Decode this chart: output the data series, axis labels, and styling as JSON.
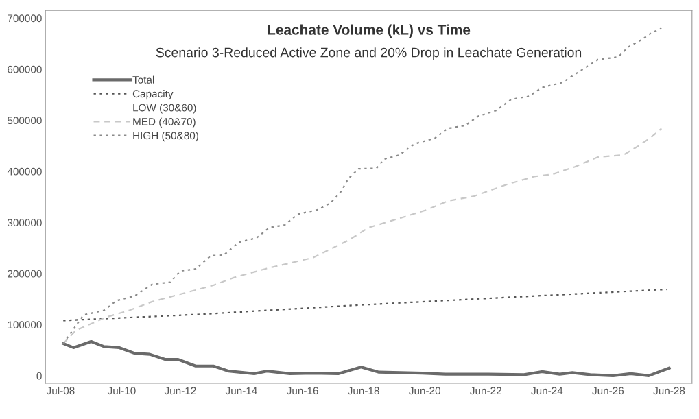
{
  "chart_data": {
    "type": "line",
    "title": "Leachate Volume (kL) vs Time",
    "subtitle": "Scenario 3-Reduced Active Zone and 20% Drop in Leachate Generation",
    "series": [
      {
        "name": "Total",
        "color": "#6a6a6a",
        "line_style": "solid",
        "x": [
          "2008-08",
          "2008-12",
          "2009-07",
          "2009-12",
          "2010-06",
          "2010-12",
          "2011-06",
          "2011-12",
          "2012-05",
          "2012-12",
          "2013-07",
          "2014-01",
          "2014-11",
          "2015-04",
          "2016-01",
          "2016-10",
          "2017-08",
          "2018-05",
          "2018-12",
          "2020-05",
          "2021-02",
          "2022-07",
          "2023-09",
          "2024-04",
          "2024-11",
          "2025-04",
          "2025-11",
          "2026-08",
          "2027-03",
          "2027-10",
          "2028-06"
        ],
        "values": [
          63000,
          55000,
          67000,
          57000,
          55000,
          44000,
          42000,
          32000,
          32000,
          19000,
          19000,
          9000,
          4000,
          9000,
          4000,
          5000,
          4000,
          17000,
          7000,
          5000,
          3000,
          3000,
          2000,
          8000,
          3000,
          6000,
          2000,
          0,
          4000,
          0,
          15000
        ]
      },
      {
        "name": "Capacity",
        "color": "#555555",
        "line_style": "dotted",
        "x": [
          "2008-08",
          "2013-01",
          "2018-03",
          "2023-01",
          "2028-05"
        ],
        "values": [
          108000,
          120000,
          138000,
          153000,
          169000
        ]
      },
      {
        "name": "LOW (30&60)",
        "line_style": "solid"
      },
      {
        "name": "MED (40&70)",
        "color": "#c8c8c8",
        "line_style": "dashed",
        "x": [
          "2008-08",
          "2009-01",
          "2010-01",
          "2010-10",
          "2011-07",
          "2012-07",
          "2013-07",
          "2014-03",
          "2015-04",
          "2016-10",
          "2017-12",
          "2018-08",
          "2019-08",
          "2020-07",
          "2021-03",
          "2022-01",
          "2023-02",
          "2024-01",
          "2024-08",
          "2025-05",
          "2026-02",
          "2026-12",
          "2027-06",
          "2027-11",
          "2028-03"
        ],
        "values": [
          63000,
          89000,
          115000,
          128000,
          145000,
          161000,
          177000,
          192000,
          210000,
          231000,
          265000,
          290000,
          308000,
          325000,
          342000,
          351000,
          374000,
          390000,
          394000,
          409000,
          428000,
          432000,
          450000,
          467000,
          484000
        ]
      },
      {
        "name": "HIGH (50&80)",
        "color": "#8a8a8a",
        "line_style": "dotted",
        "x": [
          "2008-08",
          "2009-04",
          "2009-12",
          "2010-05",
          "2010-12",
          "2011-07",
          "2012-02",
          "2012-06",
          "2012-12",
          "2013-06",
          "2013-11",
          "2014-05",
          "2014-12",
          "2015-05",
          "2015-11",
          "2016-04",
          "2016-12",
          "2017-05",
          "2017-09",
          "2017-12",
          "2018-04",
          "2018-11",
          "2019-02",
          "2019-08",
          "2020-02",
          "2020-10",
          "2021-03",
          "2021-10",
          "2022-03",
          "2022-10",
          "2023-04",
          "2023-11",
          "2024-04",
          "2024-12",
          "2026-02",
          "2026-10",
          "2027-02",
          "2027-07",
          "2027-11",
          "2028-03"
        ],
        "values": [
          63000,
          119000,
          128000,
          147000,
          156000,
          179000,
          183000,
          205000,
          209000,
          235000,
          236000,
          261000,
          270000,
          290000,
          295000,
          316000,
          325000,
          338000,
          360000,
          386000,
          405000,
          406000,
          424000,
          432000,
          454000,
          465000,
          484000,
          490000,
          508000,
          519000,
          541000,
          547000,
          564000,
          574000,
          619000,
          624000,
          644000,
          657000,
          671000,
          680000
        ]
      }
    ],
    "xlim": [
      "2008-01",
      "2029-03"
    ],
    "xticks": [
      {
        "value": "2008-07",
        "label": "Jul-08"
      },
      {
        "value": "2010-07",
        "label": "Jul-10"
      },
      {
        "value": "2012-06",
        "label": "Jun-12"
      },
      {
        "value": "2014-06",
        "label": "Jun-14"
      },
      {
        "value": "2016-06",
        "label": "Jun-16"
      },
      {
        "value": "2018-06",
        "label": "Jun-18"
      },
      {
        "value": "2020-06",
        "label": "Jun-20"
      },
      {
        "value": "2022-06",
        "label": "Jun-22"
      },
      {
        "value": "2024-06",
        "label": "Jun-24"
      },
      {
        "value": "2026-06",
        "label": "Jun-26"
      },
      {
        "value": "2028-06",
        "label": "Jun-28"
      }
    ],
    "ylim": [
      -15000,
      715000
    ],
    "yticks": [
      0,
      100000,
      200000,
      300000,
      400000,
      500000,
      600000,
      700000
    ],
    "grid": false,
    "legend": "top left"
  }
}
